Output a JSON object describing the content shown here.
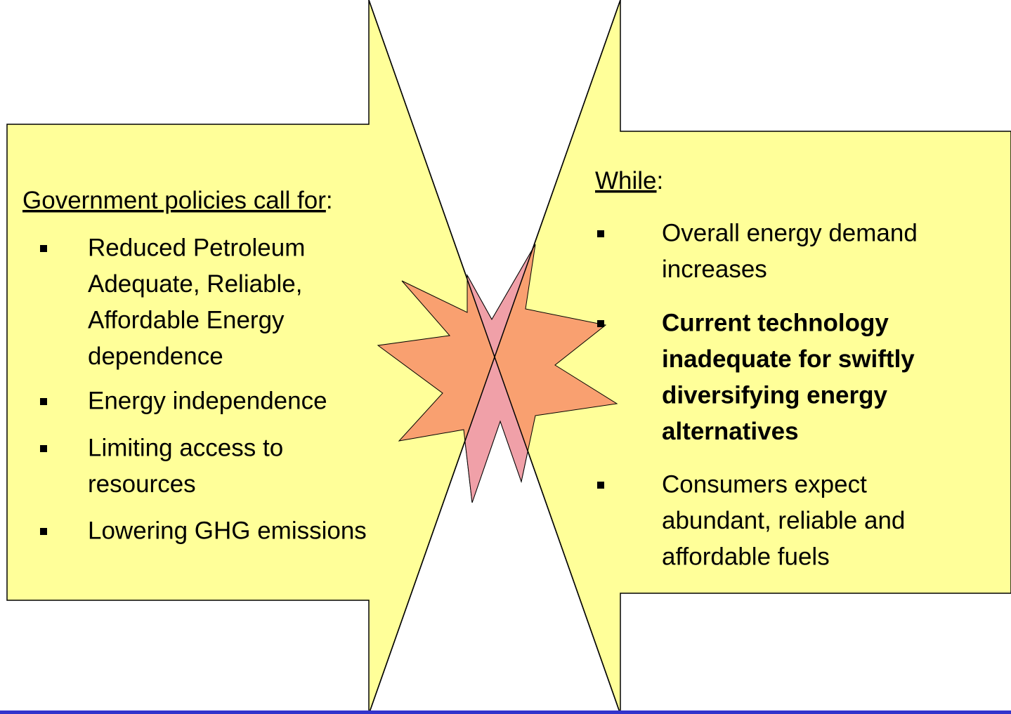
{
  "left": {
    "heading": {
      "underlined": "Government policies call for",
      "rest": ":"
    },
    "items": [
      {
        "lines": [
          "Reduced Petroleum",
          "Adequate, Reliable,",
          "Affordable Energy",
          "dependence"
        ]
      },
      {
        "lines": [
          "Energy independence"
        ]
      },
      {
        "lines": [
          "Limiting access to",
          "resources"
        ]
      },
      {
        "lines": [
          "Lowering GHG emissions"
        ]
      }
    ]
  },
  "right": {
    "heading": {
      "underlined": "While",
      "rest": ":"
    },
    "items": [
      {
        "lines": [
          "Overall energy demand",
          "increases"
        ]
      },
      {
        "lines": [
          "Current technology",
          "inadequate for swiftly",
          "diversifying energy",
          "alternatives"
        ],
        "bold": true
      },
      {
        "lines": [
          "Consumers expect",
          "abundant, reliable and",
          "affordable fuels"
        ]
      }
    ]
  }
}
